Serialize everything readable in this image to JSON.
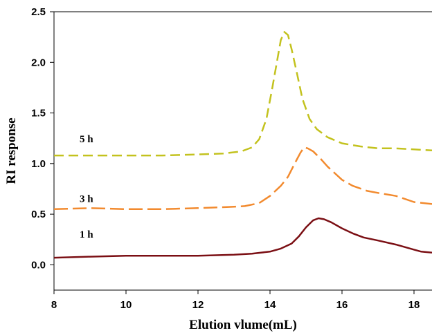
{
  "chart_data": {
    "type": "line",
    "title": "",
    "xlabel": "Elution vlume(mL)",
    "ylabel": "RI response",
    "xlim": [
      8,
      18.5
    ],
    "ylim": [
      -0.25,
      2.5
    ],
    "xticks": [
      8,
      10,
      12,
      14,
      16,
      18
    ],
    "yticks": [
      0.0,
      0.5,
      1.0,
      1.5,
      2.0,
      2.5
    ],
    "xtick_labels": [
      "8",
      "10",
      "12",
      "14",
      "16",
      "18"
    ],
    "ytick_labels": [
      "0.0",
      "0.5",
      "1.0",
      "1.5",
      "2.0",
      "2.5"
    ],
    "grid": false,
    "legend": "none",
    "series": [
      {
        "name": "1 h",
        "color": "#7b0f14",
        "dash": "solid",
        "label_at": [
          8.9,
          0.27
        ],
        "points": [
          [
            8.0,
            0.07
          ],
          [
            9.0,
            0.08
          ],
          [
            10.0,
            0.09
          ],
          [
            11.0,
            0.09
          ],
          [
            12.0,
            0.09
          ],
          [
            13.0,
            0.1
          ],
          [
            13.5,
            0.11
          ],
          [
            14.0,
            0.13
          ],
          [
            14.3,
            0.16
          ],
          [
            14.6,
            0.21
          ],
          [
            14.8,
            0.28
          ],
          [
            15.0,
            0.37
          ],
          [
            15.2,
            0.44
          ],
          [
            15.35,
            0.46
          ],
          [
            15.5,
            0.45
          ],
          [
            15.7,
            0.42
          ],
          [
            16.0,
            0.36
          ],
          [
            16.3,
            0.31
          ],
          [
            16.6,
            0.27
          ],
          [
            17.0,
            0.24
          ],
          [
            17.5,
            0.2
          ],
          [
            18.0,
            0.15
          ],
          [
            18.2,
            0.13
          ],
          [
            18.5,
            0.12
          ]
        ]
      },
      {
        "name": "3 h",
        "color": "#f28a2e",
        "dash": "long-dash",
        "label_at": [
          8.9,
          0.62
        ],
        "points": [
          [
            8.0,
            0.55
          ],
          [
            9.0,
            0.56
          ],
          [
            10.0,
            0.55
          ],
          [
            11.0,
            0.55
          ],
          [
            12.0,
            0.56
          ],
          [
            12.8,
            0.57
          ],
          [
            13.3,
            0.58
          ],
          [
            13.7,
            0.61
          ],
          [
            14.0,
            0.68
          ],
          [
            14.3,
            0.78
          ],
          [
            14.5,
            0.87
          ],
          [
            14.7,
            1.01
          ],
          [
            14.85,
            1.11
          ],
          [
            14.95,
            1.16
          ],
          [
            15.05,
            1.15
          ],
          [
            15.2,
            1.12
          ],
          [
            15.4,
            1.05
          ],
          [
            15.6,
            0.97
          ],
          [
            16.0,
            0.84
          ],
          [
            16.3,
            0.78
          ],
          [
            16.7,
            0.73
          ],
          [
            17.0,
            0.71
          ],
          [
            17.5,
            0.68
          ],
          [
            18.0,
            0.62
          ],
          [
            18.5,
            0.6
          ]
        ]
      },
      {
        "name": "5 h",
        "color": "#c3c21e",
        "dash": "dash",
        "label_at": [
          8.9,
          1.21
        ],
        "points": [
          [
            8.0,
            1.08
          ],
          [
            9.0,
            1.08
          ],
          [
            10.0,
            1.08
          ],
          [
            11.0,
            1.08
          ],
          [
            12.0,
            1.09
          ],
          [
            12.7,
            1.1
          ],
          [
            13.2,
            1.12
          ],
          [
            13.5,
            1.16
          ],
          [
            13.7,
            1.24
          ],
          [
            13.9,
            1.44
          ],
          [
            14.05,
            1.72
          ],
          [
            14.2,
            2.02
          ],
          [
            14.3,
            2.22
          ],
          [
            14.4,
            2.3
          ],
          [
            14.5,
            2.27
          ],
          [
            14.6,
            2.13
          ],
          [
            14.75,
            1.89
          ],
          [
            14.9,
            1.64
          ],
          [
            15.1,
            1.44
          ],
          [
            15.3,
            1.34
          ],
          [
            15.6,
            1.26
          ],
          [
            16.0,
            1.2
          ],
          [
            16.5,
            1.17
          ],
          [
            17.0,
            1.15
          ],
          [
            17.5,
            1.15
          ],
          [
            18.0,
            1.14
          ],
          [
            18.5,
            1.13
          ]
        ]
      }
    ]
  }
}
